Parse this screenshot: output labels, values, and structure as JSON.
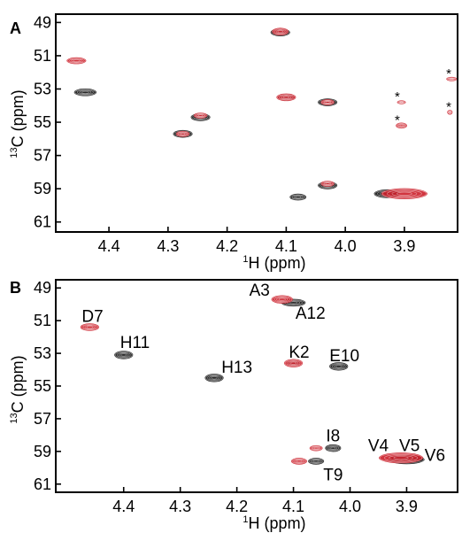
{
  "colors": {
    "black": "#111111",
    "red": "#cc1f2a",
    "axis": "#000000"
  },
  "chart_data": [
    {
      "panel": "A",
      "type": "scatter",
      "xlabel_sup": "1",
      "xlabel": "H (ppm)",
      "ylabel_sup": "13",
      "ylabel": "C (ppm)",
      "xlim": [
        4.49,
        3.81
      ],
      "ylim": [
        61.6,
        48.5
      ],
      "x_ticks": [
        "4.4",
        "4.3",
        "4.2",
        "4.1",
        "4.0",
        "3.9"
      ],
      "x_tick_values": [
        4.4,
        4.3,
        4.2,
        4.1,
        4.0,
        3.9
      ],
      "y_ticks": [
        "49",
        "51",
        "53",
        "55",
        "57",
        "59",
        "61"
      ],
      "y_tick_values": [
        49,
        51,
        53,
        55,
        57,
        59,
        61
      ],
      "series": [
        {
          "color": "black",
          "points": [
            {
              "x": 4.44,
              "y": 53.2,
              "w": 0.035,
              "h": 0.35
            },
            {
              "x": 4.245,
              "y": 54.7,
              "w": 0.03,
              "h": 0.35
            },
            {
              "x": 4.275,
              "y": 55.7,
              "w": 0.03,
              "h": 0.35
            },
            {
              "x": 4.11,
              "y": 49.6,
              "w": 0.03,
              "h": 0.35
            },
            {
              "x": 4.1,
              "y": 53.5,
              "w": 0.025,
              "h": 0.3
            },
            {
              "x": 4.03,
              "y": 53.8,
              "w": 0.03,
              "h": 0.35
            },
            {
              "x": 4.03,
              "y": 58.8,
              "w": 0.03,
              "h": 0.35
            },
            {
              "x": 4.08,
              "y": 59.5,
              "w": 0.025,
              "h": 0.3
            },
            {
              "x": 3.93,
              "y": 59.3,
              "w": 0.04,
              "h": 0.4
            }
          ]
        },
        {
          "color": "red",
          "points": [
            {
              "x": 4.455,
              "y": 51.3,
              "w": 0.03,
              "h": 0.3
            },
            {
              "x": 4.245,
              "y": 54.6,
              "w": 0.02,
              "h": 0.25
            },
            {
              "x": 4.275,
              "y": 55.7,
              "w": 0.02,
              "h": 0.25
            },
            {
              "x": 4.11,
              "y": 49.55,
              "w": 0.025,
              "h": 0.35
            },
            {
              "x": 4.1,
              "y": 53.5,
              "w": 0.03,
              "h": 0.35
            },
            {
              "x": 4.03,
              "y": 53.8,
              "w": 0.02,
              "h": 0.25
            },
            {
              "x": 4.03,
              "y": 58.7,
              "w": 0.02,
              "h": 0.25
            },
            {
              "x": 3.9,
              "y": 59.3,
              "w": 0.075,
              "h": 0.55
            },
            {
              "x": 3.905,
              "y": 53.8,
              "w": 0.012,
              "h": 0.12
            },
            {
              "x": 3.905,
              "y": 55.2,
              "w": 0.016,
              "h": 0.25
            },
            {
              "x": 3.82,
              "y": 52.4,
              "w": 0.015,
              "h": 0.15
            },
            {
              "x": 3.823,
              "y": 54.4,
              "w": 0.006,
              "h": 0.18
            }
          ]
        }
      ],
      "annotations": [
        {
          "text": "*",
          "x": 3.912,
          "y": 53.3
        },
        {
          "text": "*",
          "x": 3.912,
          "y": 54.7
        },
        {
          "text": "*",
          "x": 3.825,
          "y": 51.9
        },
        {
          "text": "*",
          "x": 3.825,
          "y": 53.9
        }
      ]
    },
    {
      "panel": "B",
      "type": "scatter",
      "xlabel_sup": "1",
      "xlabel": "H (ppm)",
      "ylabel_sup": "13",
      "ylabel": "C (ppm)",
      "xlim": [
        4.52,
        3.81
      ],
      "ylim": [
        61.5,
        48.5
      ],
      "x_ticks": [
        "4.4",
        "4.3",
        "4.2",
        "4.1",
        "4.0",
        "3.9"
      ],
      "x_tick_values": [
        4.4,
        4.3,
        4.2,
        4.1,
        4.0,
        3.9
      ],
      "y_ticks": [
        "49",
        "51",
        "53",
        "55",
        "57",
        "59",
        "61"
      ],
      "y_tick_values": [
        49,
        51,
        53,
        55,
        57,
        59,
        61
      ],
      "series": [
        {
          "color": "black",
          "points": [
            {
              "x": 4.4,
              "y": 53.1,
              "w": 0.03,
              "h": 0.4
            },
            {
              "x": 4.24,
              "y": 54.5,
              "w": 0.03,
              "h": 0.4
            },
            {
              "x": 4.1,
              "y": 49.9,
              "w": 0.04,
              "h": 0.35
            },
            {
              "x": 4.1,
              "y": 53.6,
              "w": 0.02,
              "h": 0.25
            },
            {
              "x": 4.02,
              "y": 53.8,
              "w": 0.03,
              "h": 0.4
            },
            {
              "x": 4.03,
              "y": 58.8,
              "w": 0.025,
              "h": 0.35
            },
            {
              "x": 4.06,
              "y": 59.6,
              "w": 0.025,
              "h": 0.3
            },
            {
              "x": 3.9,
              "y": 59.5,
              "w": 0.06,
              "h": 0.45
            }
          ]
        },
        {
          "color": "red",
          "points": [
            {
              "x": 4.46,
              "y": 51.4,
              "w": 0.03,
              "h": 0.35
            },
            {
              "x": 4.12,
              "y": 49.7,
              "w": 0.035,
              "h": 0.4
            },
            {
              "x": 4.1,
              "y": 53.6,
              "w": 0.03,
              "h": 0.4
            },
            {
              "x": 4.06,
              "y": 58.8,
              "w": 0.02,
              "h": 0.25
            },
            {
              "x": 4.09,
              "y": 59.6,
              "w": 0.025,
              "h": 0.3
            },
            {
              "x": 3.91,
              "y": 59.4,
              "w": 0.075,
              "h": 0.55
            }
          ]
        }
      ],
      "labels": [
        {
          "text": "D7",
          "x": 4.455,
          "y": 50.7
        },
        {
          "text": "H11",
          "x": 4.38,
          "y": 52.3
        },
        {
          "text": "A3",
          "x": 4.16,
          "y": 49.1
        },
        {
          "text": "A12",
          "x": 4.07,
          "y": 50.5
        },
        {
          "text": "H13",
          "x": 4.2,
          "y": 53.8
        },
        {
          "text": "K2",
          "x": 4.09,
          "y": 52.9
        },
        {
          "text": "E10",
          "x": 4.01,
          "y": 53.1
        },
        {
          "text": "I8",
          "x": 4.03,
          "y": 58.0
        },
        {
          "text": "T9",
          "x": 4.03,
          "y": 60.4
        },
        {
          "text": "V4",
          "x": 3.95,
          "y": 58.6
        },
        {
          "text": "V5",
          "x": 3.895,
          "y": 58.6
        },
        {
          "text": "V6",
          "x": 3.85,
          "y": 59.2
        }
      ]
    }
  ],
  "panel_letters": [
    "A",
    "B"
  ]
}
